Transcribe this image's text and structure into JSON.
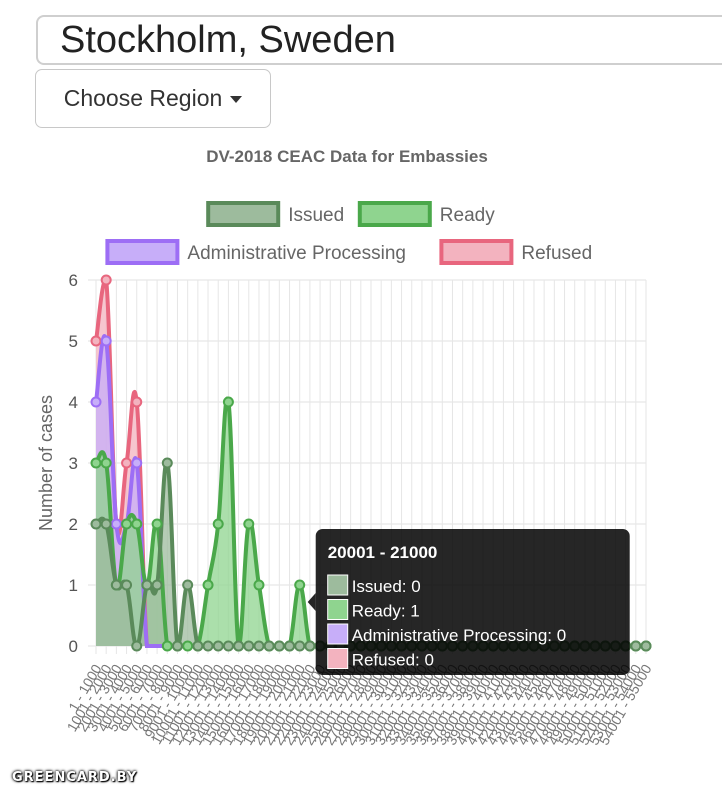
{
  "location": {
    "value": "Stockholm, Sweden"
  },
  "region_button": {
    "label": "Choose Region"
  },
  "chart_data": {
    "type": "line",
    "title": "DV-2018 CEAC Data for Embassies",
    "xlabel": "",
    "ylabel": "Number of cases",
    "ylim": [
      0,
      6
    ],
    "y_ticks": [
      0,
      1,
      2,
      3,
      4,
      5,
      6
    ],
    "grid": true,
    "legend_placement": "top",
    "stacked": false,
    "categories": [
      "1 - 1000",
      "1001 - 2000",
      "2001 - 3000",
      "3001 - 4000",
      "4001 - 5000",
      "5001 - 6000",
      "6001 - 7000",
      "7001 - 8000",
      "8001 - 9000",
      "9001 - 10000",
      "10001 - 11000",
      "11001 - 12000",
      "12001 - 13000",
      "13001 - 14000",
      "14001 - 15000",
      "15001 - 16000",
      "16001 - 17000",
      "17001 - 18000",
      "18001 - 19000",
      "19001 - 20000",
      "20001 - 21000",
      "21001 - 22000",
      "22001 - 23000",
      "23001 - 24000",
      "24001 - 25000",
      "25001 - 26000",
      "26001 - 27000",
      "27001 - 28000",
      "28001 - 29000",
      "29001 - 30000",
      "30001 - 31000",
      "31001 - 32000",
      "32001 - 33000",
      "33001 - 34000",
      "34001 - 35000",
      "35001 - 36000",
      "36001 - 37000",
      "37001 - 38000",
      "38001 - 39000",
      "39001 - 40000",
      "40001 - 41000",
      "41001 - 42000",
      "42001 - 43000",
      "43001 - 44000",
      "44001 - 45000",
      "45001 - 46000",
      "46001 - 47000",
      "47001 - 48000",
      "48001 - 49000",
      "49001 - 50000",
      "50001 - 51000",
      "51001 - 52000",
      "52001 - 53000",
      "53001 - 54000",
      "54001 - 55000"
    ],
    "series": [
      {
        "name": "Issued",
        "stroke": "#5a8a5a",
        "fill": "#9dbb9d",
        "values": [
          2,
          2,
          1,
          1,
          0,
          1,
          1,
          3,
          0,
          1,
          0,
          0,
          0,
          0,
          0,
          0,
          0,
          0,
          0,
          0,
          0,
          0,
          0,
          0,
          0,
          0,
          0,
          0,
          0,
          0,
          0,
          0,
          0,
          0,
          0,
          0,
          0,
          0,
          0,
          0,
          0,
          0,
          0,
          0,
          0,
          0,
          0,
          0,
          0,
          0,
          0,
          0,
          0,
          0,
          0
        ]
      },
      {
        "name": "Ready",
        "stroke": "#4aa84a",
        "fill": "#8fd48f",
        "values": [
          3,
          3,
          1,
          2,
          2,
          1,
          2,
          0,
          0,
          0,
          0,
          1,
          2,
          4,
          0,
          2,
          1,
          0,
          0,
          0,
          1,
          0,
          0,
          0,
          0,
          0,
          0,
          0,
          0,
          0,
          0,
          0,
          0,
          0,
          0,
          0,
          0,
          0,
          0,
          0,
          0,
          0,
          0,
          0,
          0,
          0,
          0,
          0,
          0,
          0,
          0,
          0,
          0,
          0,
          0
        ]
      },
      {
        "name": "Administrative Processing",
        "stroke": "#9d6ef5",
        "fill": "#c7aef9",
        "values": [
          4,
          5,
          2,
          2,
          3,
          0,
          0,
          0,
          0,
          0,
          0,
          0,
          0,
          0,
          0,
          0,
          0,
          0,
          0,
          0,
          0,
          0,
          0,
          0,
          0,
          0,
          0,
          0,
          0,
          0,
          0,
          0,
          0,
          0,
          0,
          0,
          0,
          0,
          0,
          0,
          0,
          0,
          0,
          0,
          0,
          0,
          0,
          0,
          0,
          0,
          0,
          0,
          0,
          0,
          0
        ]
      },
      {
        "name": "Refused",
        "stroke": "#e8667e",
        "fill": "#f3b3bf",
        "values": [
          5,
          6,
          2,
          3,
          4,
          0,
          0,
          0,
          0,
          0,
          0,
          0,
          0,
          0,
          0,
          0,
          0,
          0,
          0,
          0,
          0,
          0,
          0,
          0,
          0,
          0,
          0,
          0,
          0,
          0,
          0,
          0,
          0,
          0,
          0,
          0,
          0,
          0,
          0,
          0,
          0,
          0,
          0,
          0,
          0,
          0,
          0,
          0,
          0,
          0,
          0,
          0,
          0,
          0,
          0
        ]
      }
    ],
    "tooltip": {
      "category_index": 20,
      "title": "20001 - 21000",
      "lines": [
        "Issued: 0",
        "Ready: 1",
        "Administrative Processing: 0",
        "Refused: 0"
      ]
    }
  },
  "watermark": "GREENCARD.BY"
}
